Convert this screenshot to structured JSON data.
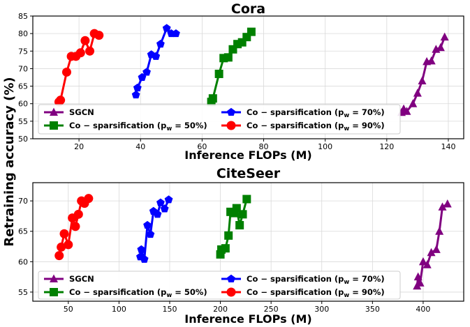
{
  "ylabel": "Retraining accuracy (%)",
  "colors": {
    "SGCN": "#800080",
    "p50": "#008000",
    "p70": "#0000ff",
    "p90": "#ff0000"
  },
  "chart_data": [
    {
      "type": "line",
      "title": "Cora",
      "xlabel": "Inference FLOPs (M)",
      "ylabel": "Retraining accuracy (%)",
      "xlim": [
        5,
        145
      ],
      "ylim": [
        50,
        85
      ],
      "xticks": [
        20,
        40,
        60,
        80,
        100,
        120,
        140
      ],
      "yticks": [
        50,
        55,
        60,
        65,
        70,
        75,
        80,
        85
      ],
      "grid": true,
      "legend": "lower-center, 2 columns",
      "legend_labels": [
        "SGCN",
        "Co − sparsification (p",
        "w",
        " = 70%)",
        "Co − sparsification (p",
        "w",
        " = 50%)",
        "Co − sparsification (p",
        "w",
        " = 90%)"
      ],
      "series": [
        {
          "name": "SGCN",
          "marker": "triangle",
          "color": "#800080",
          "x": [
            124.8,
            125.5,
            126.5,
            128.5,
            130.0,
            131.5,
            133.0,
            134.5,
            136.0,
            137.5,
            138.8
          ],
          "y": [
            57.5,
            58.5,
            57.8,
            60.0,
            63.0,
            66.5,
            72.0,
            72.2,
            75.5,
            76.0,
            79.0
          ]
        },
        {
          "name": "Co − sparsification (pw = 50%)",
          "marker": "square",
          "color": "#008000",
          "x": [
            63.0,
            63.5,
            65.5,
            67.0,
            68.5,
            70.0,
            71.5,
            73.0,
            74.5,
            76.0
          ],
          "y": [
            60.5,
            61.5,
            68.5,
            73.0,
            73.2,
            75.5,
            77.0,
            77.5,
            79.0,
            80.5
          ]
        },
        {
          "name": "Co − sparsification (pw = 70%)",
          "marker": "pentagon",
          "color": "#0000ff",
          "x": [
            38.5,
            39.0,
            40.5,
            42.0,
            43.5,
            45.0,
            46.5,
            48.5,
            50.0,
            51.5
          ],
          "y": [
            62.5,
            64.5,
            67.5,
            69.0,
            74.0,
            73.5,
            77.0,
            81.5,
            80.0,
            80.0
          ]
        },
        {
          "name": "Co − sparsification (pw = 90%)",
          "marker": "circle",
          "color": "#ff0000",
          "x": [
            13.5,
            14.0,
            16.0,
            17.5,
            19.0,
            20.5,
            22.0,
            23.5,
            25.0,
            26.5
          ],
          "y": [
            60.5,
            61.0,
            69.0,
            73.5,
            73.5,
            74.5,
            78.0,
            75.0,
            80.0,
            79.5
          ]
        }
      ]
    },
    {
      "type": "line",
      "title": "CiteSeer",
      "xlabel": "Inference FLOPs (M)",
      "ylabel": "Retraining accuracy (%)",
      "xlim": [
        15,
        440
      ],
      "ylim": [
        53.5,
        73
      ],
      "xticks": [
        50,
        100,
        150,
        200,
        250,
        300,
        350,
        400
      ],
      "yticks": [
        55,
        60,
        65,
        70
      ],
      "grid": true,
      "legend": "lower-center, 2 columns",
      "legend_labels": [
        "SGCN",
        "Co − sparsification (p",
        "w",
        " = 70%)",
        "Co − sparsification (p",
        "w",
        " = 50%)",
        "Co − sparsification (p",
        "w",
        " = 90%)"
      ],
      "series": [
        {
          "name": "SGCN",
          "marker": "triangle",
          "color": "#800080",
          "x": [
            394,
            395,
            397,
            400,
            404,
            408,
            413,
            416,
            419,
            424
          ],
          "y": [
            56.0,
            57.5,
            56.5,
            60.0,
            59.5,
            61.5,
            62.0,
            65.0,
            69.0,
            69.5
          ]
        },
        {
          "name": "Co − sparsification (pw = 50%)",
          "marker": "square",
          "color": "#008000",
          "x": [
            200,
            201,
            205,
            208,
            210,
            213,
            216,
            219,
            222,
            226
          ],
          "y": [
            61.2,
            62.0,
            62.2,
            64.3,
            68.2,
            68.0,
            68.8,
            66.0,
            67.8,
            70.3
          ]
        },
        {
          "name": "Co − sparsification (pw = 70%)",
          "marker": "pentagon",
          "color": "#0000ff",
          "x": [
            121,
            122,
            125,
            128,
            131,
            134,
            138,
            141,
            145,
            149
          ],
          "y": [
            60.8,
            62.0,
            60.4,
            66.0,
            64.5,
            68.3,
            67.8,
            69.7,
            68.7,
            70.2
          ]
        },
        {
          "name": "Co − sparsification (pw = 90%)",
          "marker": "circle",
          "color": "#ff0000",
          "x": [
            41,
            43,
            46,
            50,
            54,
            57,
            60,
            63,
            66,
            70
          ],
          "y": [
            61.0,
            62.4,
            64.6,
            62.8,
            67.2,
            65.8,
            67.8,
            70.0,
            69.6,
            70.4
          ]
        }
      ]
    }
  ]
}
